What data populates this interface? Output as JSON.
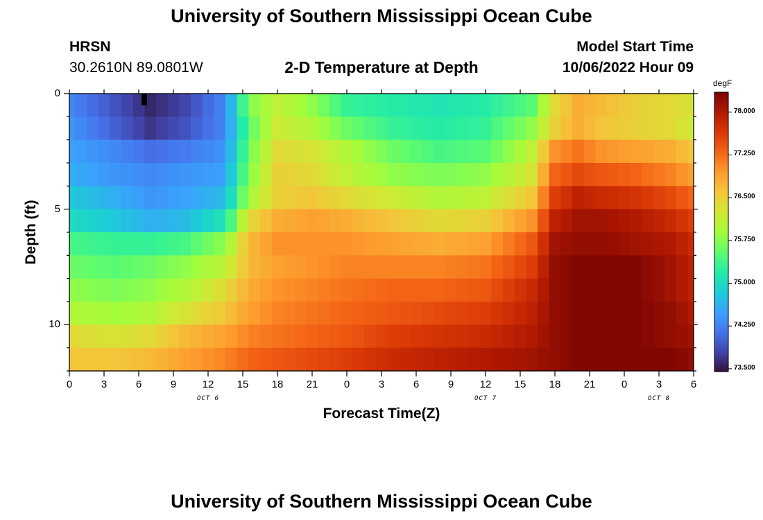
{
  "header": {
    "title_top": "University of Southern Mississippi Ocean Cube",
    "station": "HRSN",
    "coords": "30.2610N  89.0801W",
    "subtitle": "2-D Temperature at Depth",
    "model_label": "Model Start Time",
    "model_time": "10/06/2022 Hour 09",
    "title_bottom": "University of Southern Mississippi Ocean Cube"
  },
  "chart_data": {
    "type": "heatmap",
    "title": "2-D Temperature at Depth",
    "xlabel": "Forecast Time(Z)",
    "ylabel": "Depth (ft)",
    "unit": "degF",
    "x_tick_labels": [
      "0",
      "3",
      "6",
      "9",
      "12",
      "15",
      "18",
      "21",
      "0",
      "3",
      "6",
      "9",
      "12",
      "15",
      "18",
      "21",
      "0",
      "3",
      "6"
    ],
    "date_labels": [
      "OCT 6",
      "OCT 7",
      "OCT 8"
    ],
    "y_tick_labels": [
      "0",
      "5",
      "10"
    ],
    "ylim": [
      0,
      12
    ],
    "x_range_hours": [
      0,
      54
    ],
    "colorbar": {
      "label": "degF",
      "ticks": [
        "78.000",
        "77.250",
        "76.500",
        "75.750",
        "75.000",
        "74.250",
        "73.500"
      ],
      "range": [
        73.45,
        78.35
      ],
      "colors": [
        "#30123b",
        "#4145ab",
        "#4675ed",
        "#39a2fc",
        "#1bcfd4",
        "#24eca6",
        "#61fc6c",
        "#a4fc3b",
        "#d1e834",
        "#f3c63a",
        "#fe9b2d",
        "#f36315",
        "#d93806",
        "#b11901",
        "#7a0403"
      ]
    },
    "depth_levels_ft": [
      0,
      1,
      2,
      3,
      4,
      5,
      6,
      7,
      8,
      9,
      10,
      11
    ],
    "time_knots_hours": [
      0,
      4,
      7,
      10,
      13.5,
      15.5,
      18,
      21,
      24,
      28,
      32,
      36,
      40,
      42,
      44,
      46,
      49,
      52,
      54
    ],
    "values_degF": [
      [
        74.3,
        73.9,
        73.6,
        73.8,
        74.3,
        75.7,
        76.1,
        75.8,
        75.3,
        75.2,
        75.1,
        75.2,
        75.5,
        76.4,
        76.8,
        76.7,
        76.5,
        76.4,
        76.3
      ],
      [
        74.4,
        74.0,
        73.7,
        73.9,
        74.3,
        75.5,
        76.2,
        76.0,
        75.6,
        75.3,
        75.2,
        75.3,
        75.8,
        76.5,
        76.8,
        76.6,
        76.5,
        76.4,
        76.2
      ],
      [
        74.5,
        74.3,
        74.1,
        74.2,
        74.4,
        75.6,
        76.4,
        76.3,
        76.0,
        75.6,
        75.4,
        75.5,
        76.1,
        77.0,
        77.2,
        77.0,
        76.9,
        76.8,
        76.6
      ],
      [
        74.6,
        74.4,
        74.3,
        74.4,
        74.5,
        75.7,
        76.5,
        76.4,
        76.1,
        75.8,
        75.7,
        75.8,
        76.3,
        77.3,
        77.5,
        77.4,
        77.3,
        77.1,
        76.9
      ],
      [
        74.8,
        74.6,
        74.4,
        74.5,
        74.7,
        75.9,
        76.5,
        76.6,
        76.4,
        76.2,
        76.0,
        76.1,
        76.6,
        77.6,
        77.9,
        77.8,
        77.7,
        77.5,
        77.3
      ],
      [
        75.0,
        74.8,
        74.6,
        74.7,
        75.1,
        76.4,
        76.8,
        76.9,
        76.8,
        76.6,
        76.4,
        76.5,
        77.0,
        77.9,
        78.1,
        78.1,
        78.0,
        77.8,
        77.6
      ],
      [
        75.4,
        75.3,
        75.3,
        75.4,
        75.8,
        76.7,
        77.0,
        77.0,
        77.0,
        76.9,
        76.8,
        76.9,
        77.4,
        78.1,
        78.2,
        78.2,
        78.1,
        78.0,
        77.8
      ],
      [
        75.6,
        75.5,
        75.6,
        75.8,
        76.1,
        76.7,
        76.9,
        77.0,
        77.1,
        77.1,
        77.1,
        77.2,
        77.6,
        78.2,
        78.3,
        78.3,
        78.3,
        78.1,
        77.9
      ],
      [
        75.8,
        75.7,
        75.8,
        76.0,
        76.4,
        76.8,
        77.0,
        77.1,
        77.2,
        77.3,
        77.3,
        77.4,
        77.8,
        78.2,
        78.3,
        78.3,
        78.3,
        78.1,
        77.9
      ],
      [
        76.0,
        75.9,
        76.0,
        76.3,
        76.6,
        76.9,
        77.1,
        77.2,
        77.3,
        77.4,
        77.5,
        77.6,
        77.9,
        78.2,
        78.3,
        78.3,
        78.3,
        78.2,
        78.0
      ],
      [
        76.4,
        76.3,
        76.4,
        76.7,
        76.9,
        77.1,
        77.2,
        77.3,
        77.4,
        77.6,
        77.7,
        77.8,
        78.0,
        78.2,
        78.3,
        78.3,
        78.3,
        78.2,
        78.1
      ],
      [
        76.6,
        76.6,
        76.7,
        76.9,
        77.1,
        77.3,
        77.4,
        77.5,
        77.6,
        77.8,
        77.9,
        78.0,
        78.1,
        78.2,
        78.3,
        78.3,
        78.3,
        78.3,
        78.2
      ]
    ]
  }
}
